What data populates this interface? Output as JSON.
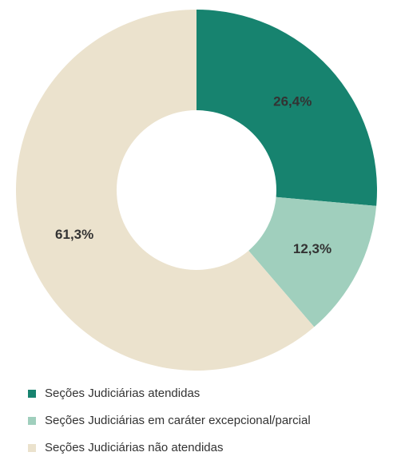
{
  "chart_data": {
    "type": "donut",
    "categories": [
      "Seções Judiciárias atendidas",
      "Seções Judiciárias em caráter excepcional/parcial",
      "Seções Judiciárias não atendidas"
    ],
    "values": [
      26.4,
      12.3,
      61.3
    ],
    "value_labels": [
      "26,4%",
      "12,3%",
      "61,3%"
    ],
    "colors": [
      "#17836f",
      "#a0cfbd",
      "#ebe2cd"
    ],
    "legend": "bottom"
  }
}
